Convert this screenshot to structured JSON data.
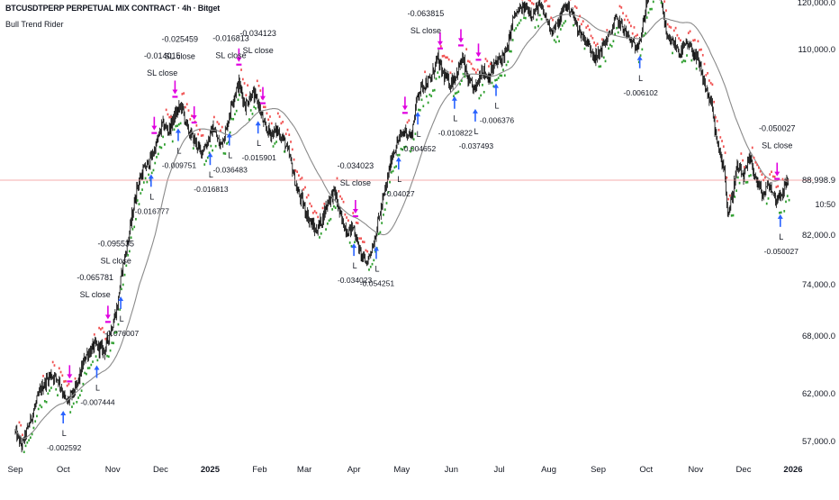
{
  "header": {
    "symbol_title": "BTCUSDTPERP PERPETUAL MIX CONTRACT · 4h · Bitget",
    "indicator_name": "Bull Trend Rider"
  },
  "colors": {
    "background": "#ffffff",
    "candle": "#000000",
    "sma_line": "#8a8a8a",
    "stop_bull": "#2e9e2e",
    "stop_bear": "#f05050",
    "entry_arrow": "#2962ff",
    "exit_arrow": "#e000e0",
    "price_line": "#f09090",
    "axis_text": "#131722"
  },
  "price_axis": {
    "ticks": [
      {
        "value": 57000,
        "label": "57,000.0"
      },
      {
        "value": 62000,
        "label": "62,000.0"
      },
      {
        "value": 68000,
        "label": "68,000.0"
      },
      {
        "value": 74000,
        "label": "74,000.0"
      },
      {
        "value": 82000,
        "label": "82,000.0"
      },
      {
        "value": 110000,
        "label": "110,000.0"
      },
      {
        "value": 120000,
        "label": "120,000.0"
      }
    ],
    "current_price_label": "88,998.9",
    "current_price": 88999,
    "countdown_label": "10:50"
  },
  "time_axis": {
    "ticks": [
      {
        "label": "Sep",
        "day": 0
      },
      {
        "label": "Oct",
        "day": 30
      },
      {
        "label": "Nov",
        "day": 61
      },
      {
        "label": "Dec",
        "day": 91
      },
      {
        "label": "2025",
        "day": 122
      },
      {
        "label": "Feb",
        "day": 153
      },
      {
        "label": "Mar",
        "day": 181
      },
      {
        "label": "Apr",
        "day": 212
      },
      {
        "label": "May",
        "day": 242
      },
      {
        "label": "Jun",
        "day": 273
      },
      {
        "label": "Jul",
        "day": 303
      },
      {
        "label": "Aug",
        "day": 334
      },
      {
        "label": "Sep",
        "day": 365
      },
      {
        "label": "Oct",
        "day": 395
      },
      {
        "label": "Nov",
        "day": 426
      },
      {
        "label": "Dec",
        "day": 456
      },
      {
        "label": "2026",
        "day": 487
      }
    ]
  },
  "chart_data": {
    "type": "candlestick",
    "title": "BTCUSDTPERP PERPETUAL MIX CONTRACT · 4h · Bitget",
    "x_unit": "days since start of Sep 2024",
    "price_key_points": [
      [
        0,
        58000
      ],
      [
        4,
        56500
      ],
      [
        10,
        59500
      ],
      [
        16,
        62500
      ],
      [
        22,
        64000
      ],
      [
        27,
        63500
      ],
      [
        32,
        61000
      ],
      [
        38,
        62500
      ],
      [
        44,
        66000
      ],
      [
        50,
        67000
      ],
      [
        56,
        66500
      ],
      [
        61,
        69500
      ],
      [
        64,
        71500
      ],
      [
        67,
        76500
      ],
      [
        72,
        83000
      ],
      [
        76,
        88000
      ],
      [
        80,
        90500
      ],
      [
        84,
        92000
      ],
      [
        88,
        94500
      ],
      [
        92,
        98000
      ],
      [
        96,
        97000
      ],
      [
        100,
        99500
      ],
      [
        104,
        101000
      ],
      [
        108,
        97000
      ],
      [
        112,
        95500
      ],
      [
        116,
        93500
      ],
      [
        120,
        95000
      ],
      [
        124,
        97500
      ],
      [
        128,
        94500
      ],
      [
        132,
        97000
      ],
      [
        136,
        102000
      ],
      [
        140,
        104500
      ],
      [
        144,
        101000
      ],
      [
        148,
        103000
      ],
      [
        152,
        101500
      ],
      [
        156,
        97500
      ],
      [
        160,
        96500
      ],
      [
        164,
        97000
      ],
      [
        168,
        95500
      ],
      [
        172,
        92500
      ],
      [
        176,
        88000
      ],
      [
        180,
        86000
      ],
      [
        184,
        84000
      ],
      [
        188,
        82500
      ],
      [
        192,
        84000
      ],
      [
        196,
        86500
      ],
      [
        200,
        87500
      ],
      [
        204,
        84000
      ],
      [
        208,
        82500
      ],
      [
        212,
        83000
      ],
      [
        216,
        79000
      ],
      [
        220,
        77500
      ],
      [
        224,
        80500
      ],
      [
        228,
        84500
      ],
      [
        232,
        88000
      ],
      [
        236,
        93000
      ],
      [
        240,
        95500
      ],
      [
        244,
        97000
      ],
      [
        248,
        96000
      ],
      [
        252,
        103000
      ],
      [
        256,
        104500
      ],
      [
        260,
        105000
      ],
      [
        264,
        108500
      ],
      [
        268,
        106000
      ],
      [
        272,
        104500
      ],
      [
        276,
        106000
      ],
      [
        280,
        108500
      ],
      [
        284,
        104500
      ],
      [
        288,
        103500
      ],
      [
        292,
        107000
      ],
      [
        296,
        105500
      ],
      [
        300,
        107500
      ],
      [
        304,
        108500
      ],
      [
        308,
        110000
      ],
      [
        312,
        117000
      ],
      [
        316,
        118500
      ],
      [
        320,
        119000
      ],
      [
        324,
        117500
      ],
      [
        328,
        119500
      ],
      [
        332,
        117000
      ],
      [
        336,
        114000
      ],
      [
        340,
        115500
      ],
      [
        344,
        119500
      ],
      [
        348,
        118500
      ],
      [
        352,
        114500
      ],
      [
        356,
        112500
      ],
      [
        360,
        110500
      ],
      [
        364,
        108500
      ],
      [
        368,
        111000
      ],
      [
        372,
        113000
      ],
      [
        376,
        116500
      ],
      [
        380,
        115000
      ],
      [
        384,
        112500
      ],
      [
        388,
        110500
      ],
      [
        392,
        113000
      ],
      [
        396,
        121500
      ],
      [
        400,
        123500
      ],
      [
        404,
        122000
      ],
      [
        408,
        112000
      ],
      [
        412,
        111500
      ],
      [
        416,
        109500
      ],
      [
        420,
        111000
      ],
      [
        424,
        110000
      ],
      [
        428,
        107500
      ],
      [
        432,
        104000
      ],
      [
        436,
        101000
      ],
      [
        440,
        94000
      ],
      [
        444,
        91000
      ],
      [
        446,
        84500
      ],
      [
        448,
        86000
      ],
      [
        452,
        91000
      ],
      [
        456,
        89500
      ],
      [
        460,
        92500
      ],
      [
        464,
        89000
      ],
      [
        468,
        87000
      ],
      [
        472,
        88500
      ],
      [
        476,
        86500
      ],
      [
        480,
        87500
      ],
      [
        484,
        89000
      ]
    ],
    "annotations": [
      {
        "day": 50,
        "text": "-0.065781",
        "kind": "value",
        "group": "stack-oct"
      },
      {
        "day": 50,
        "text": "SL close",
        "kind": "label",
        "group": "stack-oct"
      },
      {
        "day": 63,
        "text": "-0.095535",
        "kind": "value"
      },
      {
        "day": 63,
        "text": "SL close",
        "kind": "label"
      },
      {
        "day": 92,
        "text": "-0.014015",
        "kind": "value"
      },
      {
        "day": 92,
        "text": "SL close",
        "kind": "label"
      },
      {
        "day": 103,
        "text": "-0.025459",
        "kind": "value"
      },
      {
        "day": 103,
        "text": "SL close",
        "kind": "label"
      },
      {
        "day": 135,
        "text": "-0.016813",
        "kind": "value"
      },
      {
        "day": 135,
        "text": "SL close",
        "kind": "label"
      },
      {
        "day": 152,
        "text": "-0.034123",
        "kind": "value"
      },
      {
        "day": 152,
        "text": "SL close",
        "kind": "label"
      },
      {
        "day": 213,
        "text": "-0.034023",
        "kind": "value"
      },
      {
        "day": 213,
        "text": "SL close",
        "kind": "label"
      },
      {
        "day": 257,
        "text": "-0.063815",
        "kind": "value"
      },
      {
        "day": 257,
        "text": "SL close",
        "kind": "label"
      },
      {
        "day": 477,
        "text": "-0.050027",
        "kind": "value"
      },
      {
        "day": 477,
        "text": "SL close",
        "kind": "label"
      }
    ],
    "entries": [
      {
        "day": 30,
        "label": "-0.002592"
      },
      {
        "day": 51,
        "label": "-0.007444"
      },
      {
        "day": 66,
        "label": "-0.076007"
      },
      {
        "day": 85,
        "label": "-0.016777"
      },
      {
        "day": 102,
        "label": "-0.009751"
      },
      {
        "day": 122,
        "label": "-0.016813"
      },
      {
        "day": 134,
        "label": "-0.036483"
      },
      {
        "day": 152,
        "label": "-0.015901"
      },
      {
        "day": 212,
        "label": "-0.034023"
      },
      {
        "day": 226,
        "label": "-0.054251"
      },
      {
        "day": 240,
        "label": "-0.04027"
      },
      {
        "day": 252,
        "label": "-0.004652"
      },
      {
        "day": 275,
        "label": "-0.010822"
      },
      {
        "day": 288,
        "label": "-0.037493"
      },
      {
        "day": 301,
        "label": "-0.006376"
      },
      {
        "day": 391,
        "label": "-0.006102"
      },
      {
        "day": 479,
        "label": "-0.050027"
      }
    ],
    "exits": [
      {
        "day": 34
      },
      {
        "day": 58
      },
      {
        "day": 87
      },
      {
        "day": 100
      },
      {
        "day": 112
      },
      {
        "day": 140
      },
      {
        "day": 155
      },
      {
        "day": 213
      },
      {
        "day": 244
      },
      {
        "day": 266
      },
      {
        "day": 279
      },
      {
        "day": 290
      },
      {
        "day": 395
      },
      {
        "day": 477
      }
    ]
  }
}
